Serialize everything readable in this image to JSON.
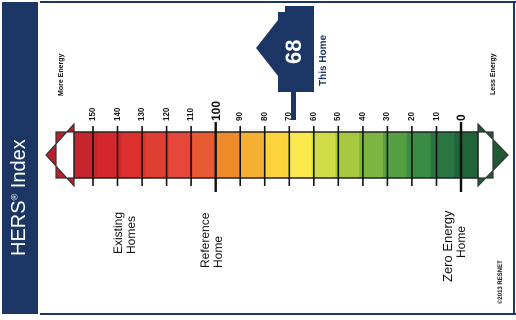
{
  "sidebar": {
    "title": "HERS",
    "title_mark": "®",
    "title_suffix": " Index"
  },
  "scale": {
    "more_energy_label": "More Energy",
    "less_energy_label": "Less Energy",
    "ticks": [
      "150",
      "140",
      "130",
      "120",
      "110",
      "100",
      "90",
      "80",
      "70",
      "60",
      "50",
      "40",
      "30",
      "20",
      "10",
      "0"
    ],
    "major_ticks": [
      "100",
      "0"
    ],
    "segment_colors": [
      "#c6252c",
      "#d4272b",
      "#dc312f",
      "#e03d33",
      "#e6473a",
      "#e75a32",
      "#f08b2c",
      "#f6b134",
      "#fcd33a",
      "#fbe84c",
      "#cfdc46",
      "#a8c83f",
      "#7db541",
      "#55a043",
      "#3a8c45",
      "#2a7541",
      "#216437"
    ],
    "left_arrow_color": "#b8212b",
    "right_arrow_color": "#1f5a34"
  },
  "this_home": {
    "score": "68",
    "label": "This Home",
    "color": "#1b3664"
  },
  "references": {
    "existing": [
      "Existing",
      "Homes"
    ],
    "reference": [
      "Reference",
      "Home"
    ],
    "zero": [
      "Zero Energy",
      "Home"
    ]
  },
  "copyright": "©2013 RESNET"
}
